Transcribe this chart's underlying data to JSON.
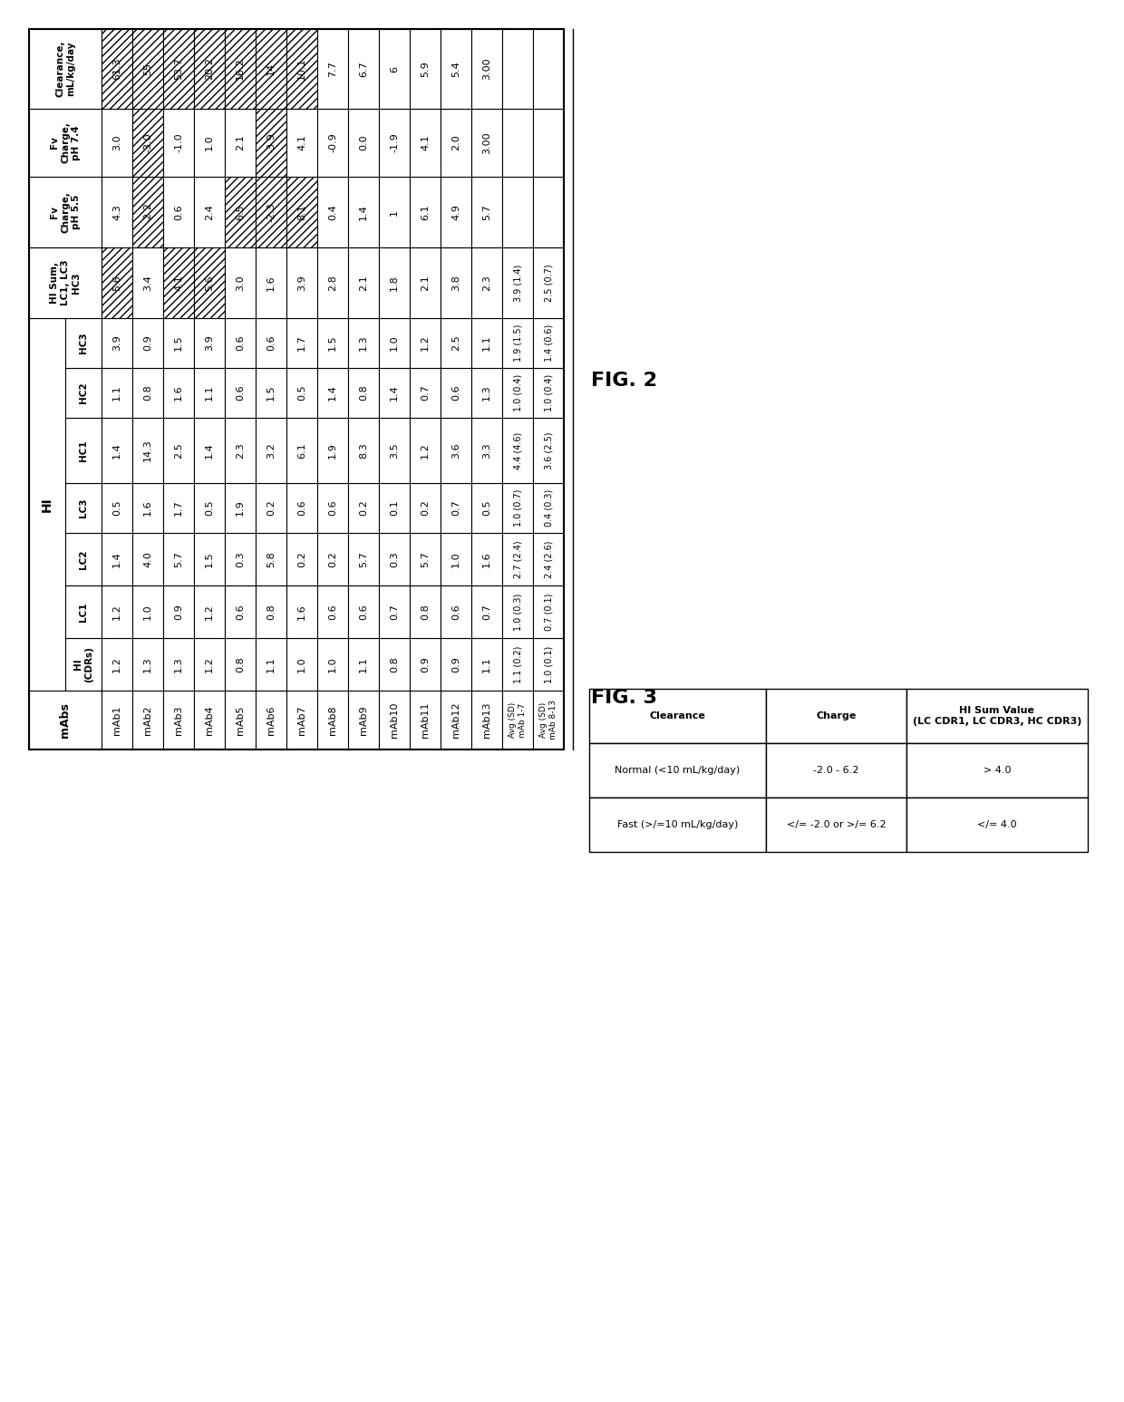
{
  "mabs": [
    "mAb1",
    "mAb2",
    "mAb3",
    "mAb4",
    "mAb5",
    "mAb6",
    "mAb7",
    "mAb8",
    "mAb9",
    "mAb10",
    "mAb11",
    "mAb12",
    "mAb13"
  ],
  "HI_CDRs": [
    "1.2",
    "1.3",
    "1.3",
    "1.2",
    "0.8",
    "1.1",
    "1.0",
    "1.0",
    "1.1",
    "0.8",
    "0.9",
    "0.9",
    "1.1"
  ],
  "LC1": [
    "1.2",
    "1.0",
    "0.9",
    "1.2",
    "0.6",
    "0.8",
    "1.6",
    "0.6",
    "0.6",
    "0.7",
    "0.8",
    "0.6",
    "0.7"
  ],
  "LC2": [
    "1.4",
    "4.0",
    "5.7",
    "1.5",
    "0.3",
    "5.8",
    "0.2",
    "0.2",
    "5.7",
    "0.3",
    "5.7",
    "1.0",
    "1.6"
  ],
  "LC3": [
    "0.5",
    "1.6",
    "1.7",
    "0.5",
    "1.9",
    "0.2",
    "0.6",
    "0.6",
    "0.2",
    "0.1",
    "0.2",
    "0.7",
    "0.5"
  ],
  "HC1": [
    "1.4",
    "14.3",
    "2.5",
    "1.4",
    "2.3",
    "3.2",
    "6.1",
    "1.9",
    "8.3",
    "3.5",
    "1.2",
    "3.6",
    "3.3"
  ],
  "HC2": [
    "1.1",
    "0.8",
    "1.6",
    "1.1",
    "0.6",
    "1.5",
    "0.5",
    "1.4",
    "0.8",
    "1.4",
    "0.7",
    "0.6",
    "1.3"
  ],
  "HC3": [
    "3.9",
    "0.9",
    "1.5",
    "3.9",
    "0.6",
    "0.6",
    "1.7",
    "1.5",
    "1.3",
    "1.0",
    "1.2",
    "2.5",
    "1.1"
  ],
  "HI_Sum": [
    "5.6",
    "3.4",
    "4.1",
    "5.6",
    "3.0",
    "1.6",
    "3.9",
    "2.8",
    "2.1",
    "1.8",
    "2.1",
    "3.8",
    "2.3"
  ],
  "Fv_55": [
    "4.3",
    "-2.2",
    "0.6",
    "2.4",
    "6.5",
    "-2.3",
    "8.1",
    "0.4",
    "1.4",
    "1",
    "6.1",
    "4.9",
    "5.7"
  ],
  "Fv_74": [
    "3.0",
    "-3.0",
    "-1.0",
    "1.0",
    "2.1",
    "-3.9",
    "4.1",
    "-0.9",
    "0.0",
    "-1.9",
    "4.1",
    "2.0",
    "3.00"
  ],
  "Clearance": [
    "61.3",
    "55",
    "53.7",
    "20.2",
    "16.2",
    "14",
    "10.1",
    "7.7",
    "6.7",
    "6",
    "5.9",
    "5.4",
    "3.00"
  ],
  "avg_label_1_7": "Avg (SD)\nmAb 1-7",
  "avg_label_8_13": "Avg (SD)\nmAb 8-13",
  "avg_1_7": [
    "1.1 (0.2)",
    "1.0 (0.3)",
    "2.7 (2.4)",
    "1.0 (0.7)",
    "4.4 (4.6)",
    "1.0 (0.4)",
    "1.9 (1.5)",
    "3.9 (1.4)"
  ],
  "avg_8_13": [
    "1.0 (0.1)",
    "0.7 (0.1)",
    "2.4 (2.6)",
    "0.4 (0.3)",
    "3.6 (2.5)",
    "1.0 (0.4)",
    "1.4 (0.6)",
    "2.5 (0.7)"
  ],
  "fig2_label": "FIG. 2",
  "fig3_label": "FIG. 3",
  "leg3_headers": [
    "Clearance",
    "Charge",
    "HI Sum Value\n(LC CDR1, LC CDR3, HC CDR3)"
  ],
  "leg3_row1": [
    "Normal (<10 mL/kg/day)",
    "-2.0 - 6.2",
    "> 4.0"
  ],
  "leg3_row2": [
    "Fast (>/=10 mL/kg/day)",
    "</= -2.0 or >/= 6.2",
    "</= 4.0"
  ]
}
